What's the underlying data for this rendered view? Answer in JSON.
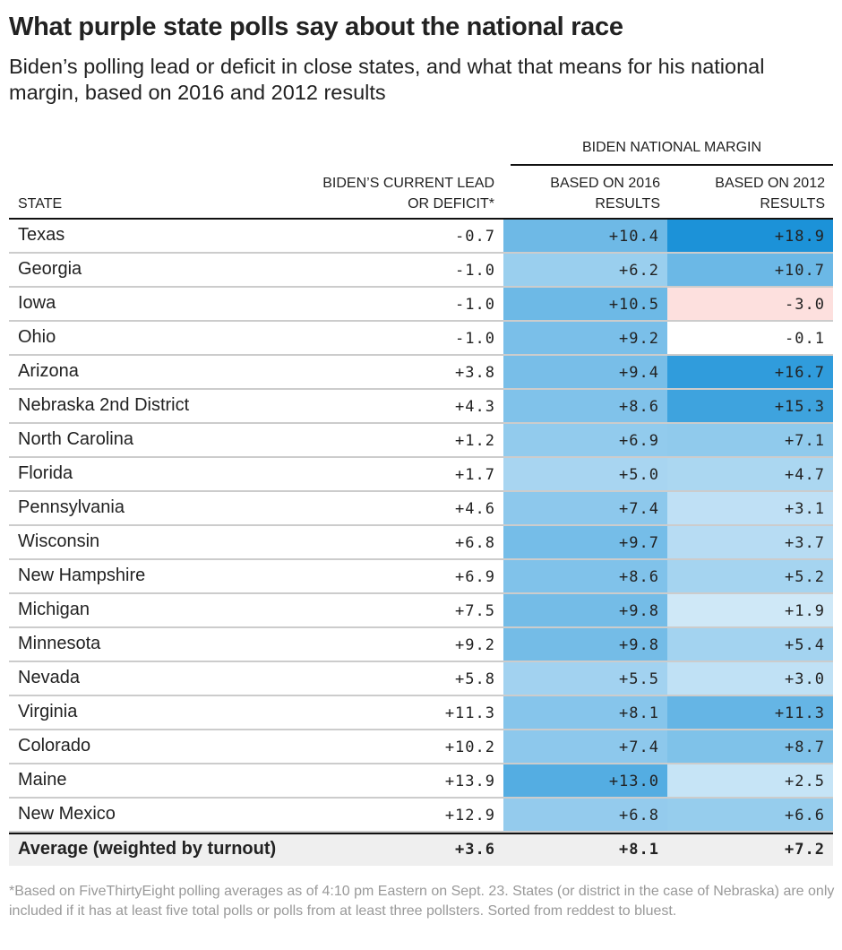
{
  "title": "What purple state polls say about the national race",
  "subtitle": "Biden’s polling lead or deficit in close states, and what that means for his national margin, based on 2016 and 2012 results",
  "footnote": "*Based on FiveThirtyEight polling averages as of 4:10 pm Eastern on Sept. 23. States (or district in the case of Nebraska) are only included if it has at least five total polls or polls from at least three pollsters. Sorted from reddest to bluest.",
  "chart_data": {
    "type": "table",
    "group_header": "BIDEN NATIONAL MARGIN",
    "columns": [
      "STATE",
      "BIDEN’S CURRENT LEAD OR DEFICIT*",
      "BASED ON 2016 RESULTS",
      "BASED ON 2012 RESULTS"
    ],
    "rows": [
      [
        "Texas",
        "-0.7",
        "+10.4",
        "+18.9"
      ],
      [
        "Georgia",
        "-1.0",
        "+6.2",
        "+10.7"
      ],
      [
        "Iowa",
        "-1.0",
        "+10.5",
        "-3.0"
      ],
      [
        "Ohio",
        "-1.0",
        "+9.2",
        "-0.1"
      ],
      [
        "Arizona",
        "+3.8",
        "+9.4",
        "+16.7"
      ],
      [
        "Nebraska 2nd District",
        "+4.3",
        "+8.6",
        "+15.3"
      ],
      [
        "North Carolina",
        "+1.2",
        "+6.9",
        "+7.1"
      ],
      [
        "Florida",
        "+1.7",
        "+5.0",
        "+4.7"
      ],
      [
        "Pennsylvania",
        "+4.6",
        "+7.4",
        "+3.1"
      ],
      [
        "Wisconsin",
        "+6.8",
        "+9.7",
        "+3.7"
      ],
      [
        "New Hampshire",
        "+6.9",
        "+8.6",
        "+5.2"
      ],
      [
        "Michigan",
        "+7.5",
        "+9.8",
        "+1.9"
      ],
      [
        "Minnesota",
        "+9.2",
        "+9.8",
        "+5.4"
      ],
      [
        "Nevada",
        "+5.8",
        "+5.5",
        "+3.0"
      ],
      [
        "Virginia",
        "+11.3",
        "+8.1",
        "+11.3"
      ],
      [
        "Colorado",
        "+10.2",
        "+7.4",
        "+8.7"
      ],
      [
        "Maine",
        "+13.9",
        "+13.0",
        "+2.5"
      ],
      [
        "New Mexico",
        "+12.9",
        "+6.8",
        "+6.6"
      ]
    ],
    "average": [
      "Average (weighted by turnout)",
      "+3.6",
      "+8.1",
      "+7.2"
    ],
    "colors": {
      "positive_max": "#1b92d8",
      "zero": "#ffffff",
      "negative": "#fde0de",
      "average_bg": "#efefef"
    }
  }
}
